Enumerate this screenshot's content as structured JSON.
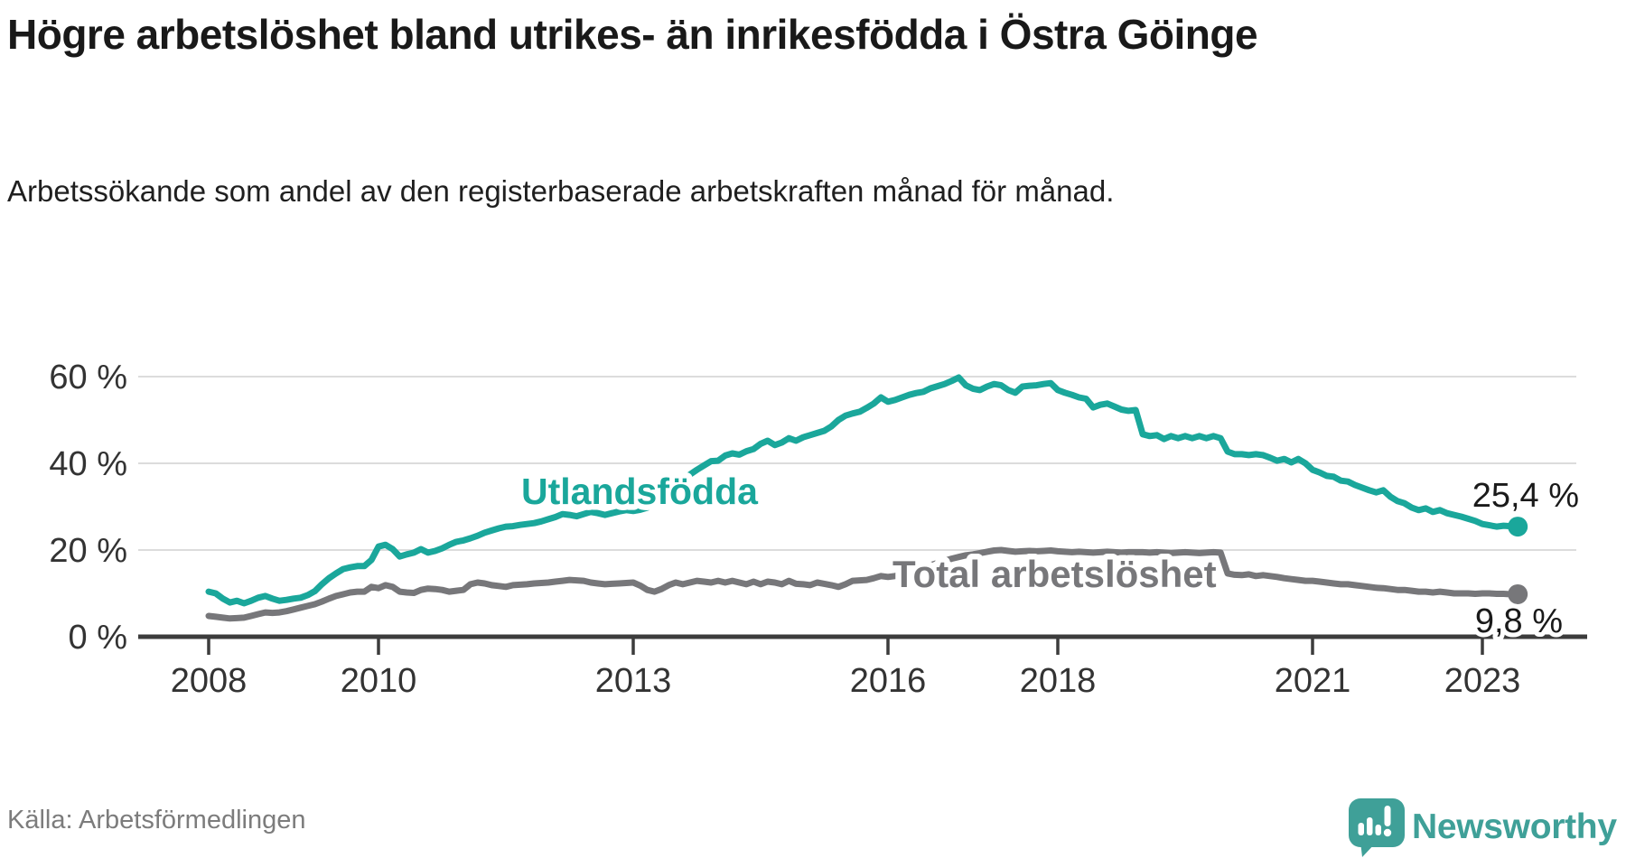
{
  "page": {
    "title": "Högre arbetslöshet bland utrikes- än inrikesfödda i Östra Göinge",
    "subtitle": "Arbetssökande som andel av den registerbaserade arbetskraften månad för månad.",
    "source": "Källa: Arbetsförmedlingen"
  },
  "branding": {
    "wordmark": "Newsworthy",
    "icon": "newsworthy-speech-bubble-bar-chart-icon",
    "color": "#3fa098"
  },
  "colors": {
    "accent_teal": "#1aa79b",
    "series_gray": "#77777a",
    "axis": "#3c3c3c",
    "grid": "#dcdcdc",
    "tick_text": "#333333",
    "label_text": "#1a1a1a"
  },
  "chart_data": {
    "type": "line",
    "title": "Högre arbetslöshet bland utrikes- än inrikesfödda i Östra Göinge",
    "xlabel": "",
    "ylabel": "Arbetssökande som andel av den registerbaserade arbetskraften",
    "unit": "%",
    "x_start_year": 2008,
    "x_start_month": 1,
    "x_resolution": "monthly",
    "x_end_year": 2023,
    "x_end_month": 6,
    "ylim": [
      0,
      62
    ],
    "grid": "horizontal-only",
    "legend_position": "inline-labels",
    "x_ticks": [
      {
        "year": 2008,
        "label": "2008"
      },
      {
        "year": 2010,
        "label": "2010"
      },
      {
        "year": 2013,
        "label": "2013"
      },
      {
        "year": 2016,
        "label": "2016"
      },
      {
        "year": 2018,
        "label": "2018"
      },
      {
        "year": 2021,
        "label": "2021"
      },
      {
        "year": 2023,
        "label": "2023"
      }
    ],
    "y_ticks": [
      {
        "value": 0,
        "label": "0 %"
      },
      {
        "value": 20,
        "label": "20 %"
      },
      {
        "value": 40,
        "label": "40 %"
      },
      {
        "value": 60,
        "label": "60 %"
      }
    ],
    "series": [
      {
        "id": "total",
        "label": "Total arbetslöshet",
        "color": "#77777a",
        "end_value": 9.8,
        "end_label": "9,8 %",
        "values": [
          4.8,
          4.6,
          4.4,
          4.2,
          4.3,
          4.4,
          4.8,
          5.2,
          5.6,
          5.5,
          5.6,
          5.9,
          6.3,
          6.7,
          7.1,
          7.5,
          8.1,
          8.8,
          9.4,
          9.8,
          10.2,
          10.4,
          10.4,
          11.5,
          11.2,
          11.9,
          11.5,
          10.4,
          10.2,
          10.1,
          10.8,
          11.1,
          11.0,
          10.8,
          10.4,
          10.6,
          10.8,
          12.1,
          12.5,
          12.3,
          11.9,
          11.7,
          11.5,
          11.9,
          12.0,
          12.1,
          12.3,
          12.4,
          12.5,
          12.7,
          12.9,
          13.1,
          13.0,
          12.9,
          12.5,
          12.3,
          12.1,
          12.2,
          12.3,
          12.4,
          12.5,
          11.8,
          10.8,
          10.4,
          11.0,
          11.9,
          12.5,
          12.1,
          12.5,
          12.9,
          12.7,
          12.5,
          12.9,
          12.5,
          12.9,
          12.5,
          12.1,
          12.7,
          12.1,
          12.7,
          12.5,
          12.1,
          12.9,
          12.2,
          12.1,
          11.9,
          12.5,
          12.2,
          11.9,
          11.5,
          12.1,
          12.9,
          13.0,
          13.1,
          13.5,
          14.0,
          13.8,
          14.0,
          14.5,
          15.0,
          15.5,
          16.0,
          16.5,
          17.0,
          17.5,
          18.0,
          18.4,
          18.8,
          19.0,
          19.3,
          19.6,
          19.9,
          20.0,
          19.8,
          19.6,
          19.7,
          19.8,
          19.7,
          19.8,
          19.9,
          19.7,
          19.6,
          19.5,
          19.6,
          19.5,
          19.4,
          19.5,
          19.6,
          19.5,
          19.4,
          19.5,
          19.5,
          19.5,
          19.4,
          19.5,
          19.4,
          19.3,
          19.4,
          19.5,
          19.4,
          19.3,
          19.4,
          19.5,
          19.4,
          14.6,
          14.3,
          14.2,
          14.4,
          14.0,
          14.2,
          14.0,
          13.8,
          13.5,
          13.3,
          13.1,
          12.9,
          12.9,
          12.7,
          12.5,
          12.3,
          12.1,
          12.1,
          11.9,
          11.7,
          11.5,
          11.3,
          11.2,
          11.0,
          10.8,
          10.8,
          10.6,
          10.4,
          10.4,
          10.2,
          10.4,
          10.2,
          10.0,
          10.0,
          10.0,
          9.9,
          10.0,
          10.0,
          9.9,
          9.9,
          9.8,
          9.8
        ]
      },
      {
        "id": "utlandsfodda",
        "label": "Utlandsfödda",
        "color": "#1aa79b",
        "end_value": 25.4,
        "end_label": "25,4 %",
        "values": [
          10.4,
          10.0,
          8.8,
          7.9,
          8.3,
          7.7,
          8.3,
          9.0,
          9.4,
          8.8,
          8.3,
          8.5,
          8.8,
          9.0,
          9.6,
          10.5,
          12.1,
          13.5,
          14.6,
          15.6,
          16.0,
          16.3,
          16.3,
          17.7,
          20.8,
          21.2,
          20.2,
          18.5,
          19.0,
          19.4,
          20.2,
          19.4,
          19.8,
          20.4,
          21.2,
          21.9,
          22.2,
          22.7,
          23.3,
          24.0,
          24.5,
          25.0,
          25.4,
          25.5,
          25.8,
          26.0,
          26.2,
          26.6,
          27.1,
          27.6,
          28.3,
          28.1,
          27.8,
          28.3,
          28.8,
          28.5,
          28.1,
          28.5,
          28.9,
          29.2,
          29.0,
          29.3,
          29.8,
          30.8,
          32.0,
          33.4,
          34.8,
          36.2,
          37.4,
          38.5,
          39.5,
          40.5,
          40.6,
          41.8,
          42.3,
          42.0,
          42.8,
          43.3,
          44.5,
          45.2,
          44.2,
          44.8,
          45.8,
          45.2,
          46.0,
          46.5,
          47.0,
          47.5,
          48.5,
          50.0,
          51.0,
          51.5,
          51.9,
          52.8,
          53.8,
          55.2,
          54.2,
          54.6,
          55.2,
          55.8,
          56.2,
          56.5,
          57.3,
          57.8,
          58.3,
          59.0,
          59.8,
          58.0,
          57.2,
          56.9,
          57.7,
          58.3,
          58.0,
          56.9,
          56.3,
          57.7,
          57.9,
          58.0,
          58.3,
          58.5,
          56.9,
          56.3,
          55.8,
          55.2,
          54.9,
          52.9,
          53.5,
          53.8,
          53.1,
          52.4,
          52.1,
          52.3,
          46.7,
          46.3,
          46.5,
          45.6,
          46.3,
          45.8,
          46.3,
          45.8,
          46.3,
          45.8,
          46.3,
          45.8,
          42.7,
          42.1,
          42.1,
          41.9,
          42.1,
          41.9,
          41.3,
          40.6,
          41.0,
          40.2,
          41.0,
          40.0,
          38.5,
          37.9,
          37.1,
          36.9,
          36.0,
          35.8,
          35.0,
          34.4,
          33.8,
          33.3,
          33.8,
          32.3,
          31.3,
          30.8,
          29.8,
          29.2,
          29.6,
          28.8,
          29.2,
          28.5,
          28.1,
          27.7,
          27.2,
          26.7,
          26.0,
          25.7,
          25.4,
          25.6,
          25.5,
          25.4
        ]
      }
    ]
  }
}
